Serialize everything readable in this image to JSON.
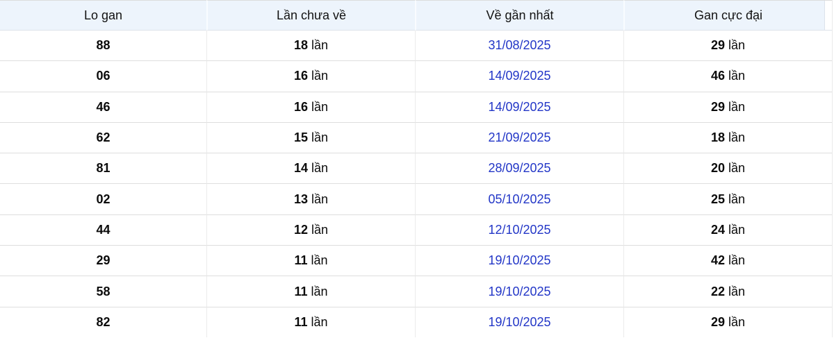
{
  "colors": {
    "header_bg": "#edf4fc",
    "date_link": "#2236c7",
    "row_border": "#dedede"
  },
  "table": {
    "unit_label": "lần",
    "columns": {
      "lo_gan": "Lo gan",
      "lan_chua_ve": "Lần chưa về",
      "ve_gan_nhat": "Về gần nhất",
      "gan_cuc_dai": "Gan cực đại"
    },
    "rows": [
      {
        "number": "88",
        "misses": "18",
        "last_seen": "31/08/2025",
        "max_gan": "29"
      },
      {
        "number": "06",
        "misses": "16",
        "last_seen": "14/09/2025",
        "max_gan": "46"
      },
      {
        "number": "46",
        "misses": "16",
        "last_seen": "14/09/2025",
        "max_gan": "29"
      },
      {
        "number": "62",
        "misses": "15",
        "last_seen": "21/09/2025",
        "max_gan": "18"
      },
      {
        "number": "81",
        "misses": "14",
        "last_seen": "28/09/2025",
        "max_gan": "20"
      },
      {
        "number": "02",
        "misses": "13",
        "last_seen": "05/10/2025",
        "max_gan": "25"
      },
      {
        "number": "44",
        "misses": "12",
        "last_seen": "12/10/2025",
        "max_gan": "24"
      },
      {
        "number": "29",
        "misses": "11",
        "last_seen": "19/10/2025",
        "max_gan": "42"
      },
      {
        "number": "58",
        "misses": "11",
        "last_seen": "19/10/2025",
        "max_gan": "22"
      },
      {
        "number": "82",
        "misses": "11",
        "last_seen": "19/10/2025",
        "max_gan": "29"
      }
    ]
  }
}
